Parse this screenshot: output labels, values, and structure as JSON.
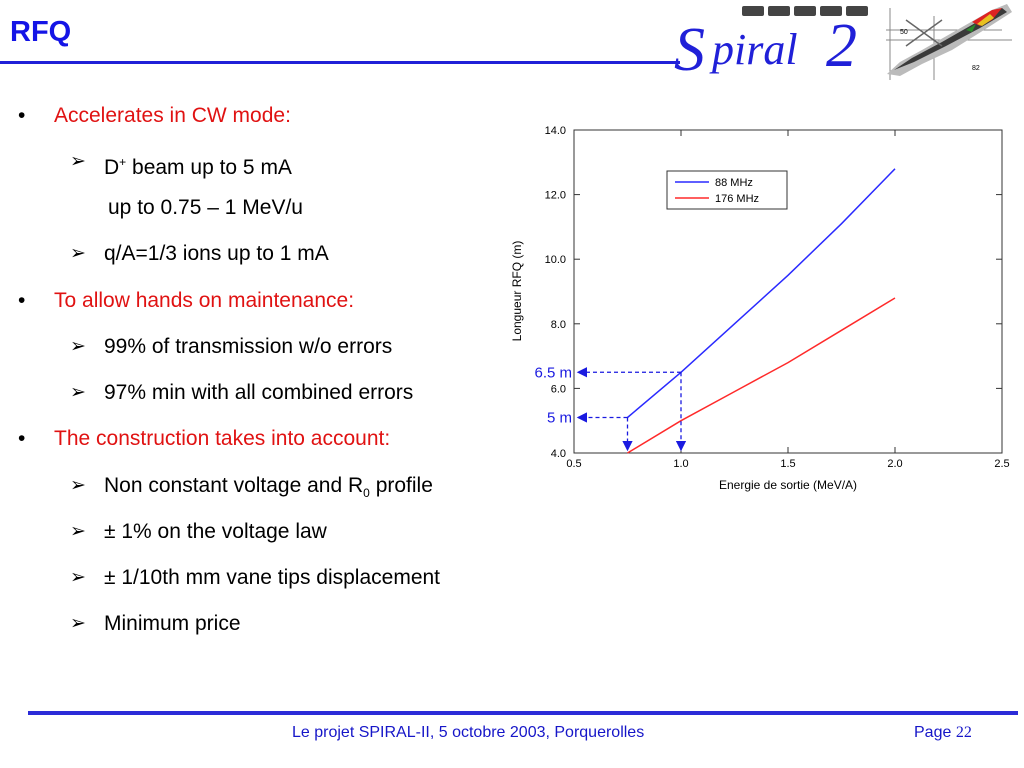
{
  "slide": {
    "title": "RFQ"
  },
  "logo": {
    "wordmark_s": "S",
    "wordmark_rest": "piral",
    "wordmark_2": "2",
    "label_50": "50",
    "label_82": "82"
  },
  "bullets": [
    {
      "level": 1,
      "text": "Accelerates in CW mode:"
    },
    {
      "level": 2,
      "pre": "D",
      "sup": "+",
      "post": " beam up to 5 mA"
    },
    {
      "level": 3,
      "text": "up to 0.75 – 1 MeV/u"
    },
    {
      "level": 2,
      "text": "q/A=1/3 ions up to 1 mA"
    },
    {
      "level": 1,
      "text": "To allow hands on maintenance:"
    },
    {
      "level": 2,
      "text": "99% of transmission w/o errors"
    },
    {
      "level": 2,
      "text": "97% min with all combined errors"
    },
    {
      "level": 1,
      "text": "The construction takes into account:"
    },
    {
      "level": 2,
      "pre": "Non constant voltage and R",
      "sub": "0",
      "post": " profile"
    },
    {
      "level": 2,
      "text": "± 1% on the voltage law"
    },
    {
      "level": 2,
      "text": "± 1/10th mm vane tips displacement"
    },
    {
      "level": 2,
      "text": "Minimum price"
    }
  ],
  "chart_data": {
    "type": "line",
    "xlabel": "Energie de sortie (MeV/A)",
    "ylabel": "Longueur RFQ (m)",
    "xlim": [
      0.5,
      2.5
    ],
    "ylim": [
      4.0,
      14.0
    ],
    "x_ticks": [
      "0.5",
      "1.0",
      "1.5",
      "2.0",
      "2.5"
    ],
    "y_ticks": [
      "4.0",
      "6.0",
      "8.0",
      "10.0",
      "12.0",
      "14.0"
    ],
    "legend_position": "top-left",
    "series": [
      {
        "name": "88 MHz",
        "color": "#2a2aff",
        "x": [
          0.75,
          1.0,
          1.25,
          1.5,
          1.75,
          2.0
        ],
        "y": [
          5.1,
          6.5,
          8.0,
          9.5,
          11.1,
          12.8
        ]
      },
      {
        "name": "176 MHz",
        "color": "#ff2a2a",
        "x": [
          0.75,
          1.0,
          1.25,
          1.5,
          1.75,
          2.0
        ],
        "y": [
          4.0,
          5.0,
          5.9,
          6.8,
          7.8,
          8.8
        ]
      }
    ],
    "annotations": [
      {
        "label": "6.5 m",
        "x": 1.0,
        "y": 6.5
      },
      {
        "label": "5 m",
        "x": 0.75,
        "y": 5.1
      }
    ]
  },
  "footer": {
    "text": "Le projet SPIRAL-II, 5 octobre 2003, Porquerolles",
    "page_label": "Page",
    "page_number": "22"
  },
  "colors": {
    "title_blue": "#1414e6",
    "bullet_red": "#e01212",
    "footer_blue": "#1616c8",
    "annot_blue": "#1a1ae0"
  }
}
